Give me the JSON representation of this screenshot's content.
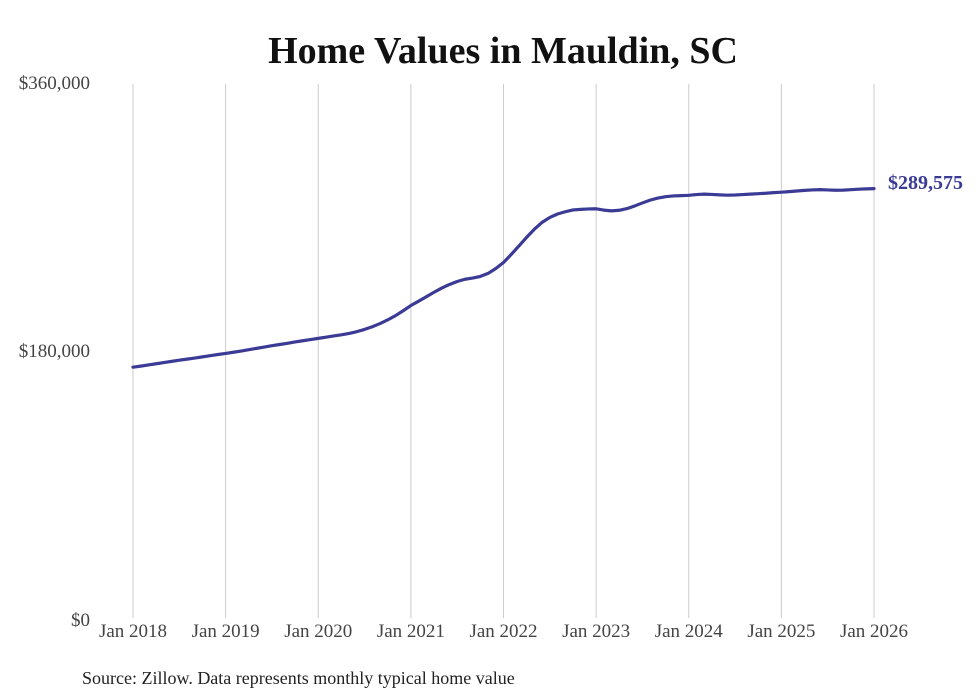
{
  "title": "Home Values in Mauldin, SC",
  "source_note": "Source: Zillow. Data represents monthly typical home value",
  "colors": {
    "line": "#3b3b96",
    "grid": "#cccccc",
    "axis_text": "#444444",
    "title_text": "#111111",
    "source_text": "#222222"
  },
  "chart_data": {
    "type": "line",
    "title": "Home Values in Mauldin, SC",
    "xlabel": "",
    "ylabel": "",
    "ylim": [
      0,
      360000
    ],
    "grid": "vertical-only",
    "legend": "none",
    "y_ticks": [
      {
        "value": 0,
        "label": "$0"
      },
      {
        "value": 180000,
        "label": "$180,000"
      },
      {
        "value": 360000,
        "label": "$360,000"
      }
    ],
    "x_ticks": [
      "Jan 2018",
      "Jan 2019",
      "Jan 2020",
      "Jan 2021",
      "Jan 2022",
      "Jan 2023",
      "Jan 2024",
      "Jan 2025",
      "Jan 2026"
    ],
    "x_unit": "month",
    "series_name": "Typical home value",
    "end_annotation": "$289,575",
    "values": [
      170000,
      170700,
      171500,
      172300,
      173100,
      173900,
      174700,
      175400,
      176100,
      176900,
      177700,
      178500,
      179200,
      180000,
      180800,
      181700,
      182600,
      183500,
      184400,
      185200,
      186000,
      186900,
      187700,
      188500,
      189300,
      190100,
      190900,
      191700,
      192600,
      193800,
      195300,
      197100,
      199200,
      201700,
      204500,
      207800,
      211300,
      214200,
      217200,
      220200,
      223000,
      225400,
      227400,
      228900,
      229700,
      230800,
      232800,
      236100,
      240100,
      245500,
      251200,
      257000,
      262400,
      267000,
      270300,
      272600,
      274100,
      275300,
      275700,
      276000,
      276100,
      275200,
      274700,
      275100,
      276200,
      278000,
      280000,
      281900,
      283300,
      284200,
      284700,
      284900,
      285100,
      285600,
      285900,
      285700,
      285400,
      285200,
      285300,
      285600,
      285900,
      286200,
      286500,
      286900,
      287200,
      287600,
      288000,
      288400,
      288700,
      288900,
      288700,
      288500,
      288600,
      288900,
      289200,
      289400,
      289575
    ]
  }
}
